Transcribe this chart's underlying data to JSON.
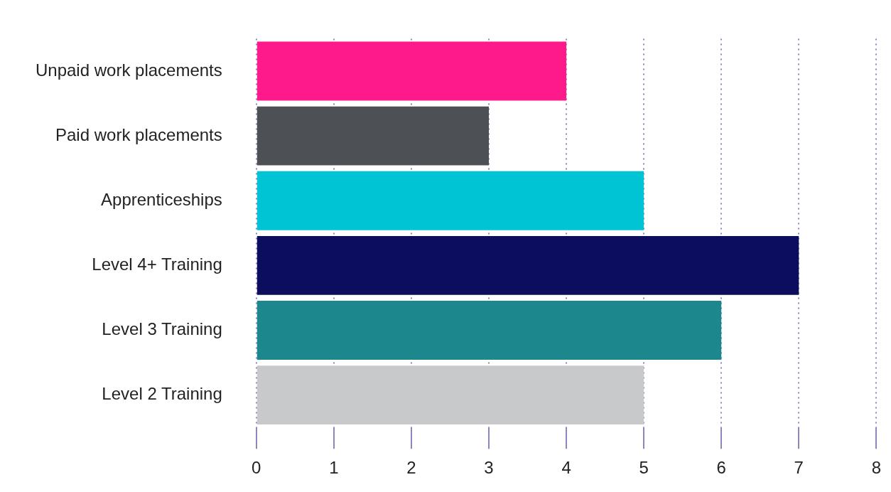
{
  "chart_data": {
    "type": "bar",
    "orientation": "horizontal",
    "categories": [
      "Unpaid work placements",
      "Paid work placements",
      "Apprenticeships",
      "Level 4+ Training",
      "Level 3 Training",
      "Level 2 Training"
    ],
    "values": [
      4,
      3,
      5,
      7,
      6,
      5
    ],
    "colors": [
      "#ff1a8c",
      "#4d5055",
      "#00c4d4",
      "#0d0d5e",
      "#1c888e",
      "#c8c9cb"
    ],
    "xlim": [
      0,
      8
    ],
    "xticks": [
      0,
      1,
      2,
      3,
      4,
      5,
      6,
      7,
      8
    ],
    "grid": "x",
    "legend": false
  }
}
